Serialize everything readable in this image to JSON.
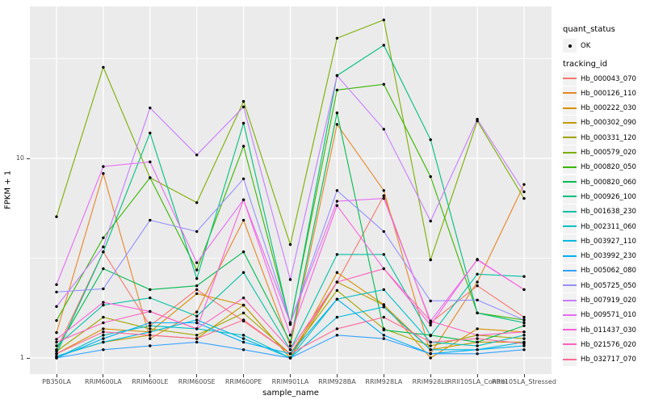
{
  "legend": {
    "quant_status_title": "quant_status",
    "quant_status_items": [
      {
        "label": "OK",
        "marker": "black-point"
      }
    ],
    "tracking_id_title": "tracking_id"
  },
  "chart_data": {
    "type": "line",
    "title": "",
    "xlabel": "sample_name",
    "ylabel": "FPKM + 1",
    "y_scale": "log10",
    "ylim": [
      1,
      60
    ],
    "yticks": [
      {
        "value": 1,
        "label": "1"
      },
      {
        "value": 10,
        "label": "10"
      }
    ],
    "y_minor_gridlines": [
      3.162,
      31.62
    ],
    "grid": true,
    "legend_position": "right",
    "panel_bg": "#EBEBEB",
    "grid_color": "#FFFFFF",
    "point_color": "#000000",
    "categories": [
      "PB350LA",
      "RRIM600LA",
      "RRIM600LE",
      "RRIM600SE",
      "RRIM600PE",
      "RRIM901LA",
      "RRIM928BA",
      "RRIM928LA",
      "RRIM928LE",
      "RRII105LA_Control",
      "RRII105LA_Stressed"
    ],
    "series": [
      {
        "name": "Hb_000043_070",
        "color": "#F8766D",
        "values": [
          1.1,
          3.4,
          1.45,
          2.2,
          1.53,
          1.05,
          2.4,
          6.5,
          1.5,
          2.3,
          1.6
        ]
      },
      {
        "name": "Hb_000126_110",
        "color": "#E88526",
        "values": [
          1.34,
          8.4,
          1.25,
          1.7,
          4.9,
          1.15,
          14.8,
          6.9,
          1.05,
          2.4,
          7.4
        ]
      },
      {
        "name": "Hb_000222_030",
        "color": "#D89000",
        "values": [
          1.05,
          1.4,
          1.35,
          2.1,
          1.84,
          1.0,
          2.68,
          1.85,
          1.0,
          1.4,
          1.35
        ]
      },
      {
        "name": "Hb_000302_090",
        "color": "#C09B00",
        "values": [
          1.02,
          1.2,
          1.3,
          1.25,
          1.84,
          1.0,
          2.4,
          1.84,
          1.1,
          1.2,
          1.2
        ]
      },
      {
        "name": "Hb_000331_120",
        "color": "#A3A500",
        "values": [
          1.08,
          1.6,
          1.4,
          1.3,
          1.68,
          1.05,
          2.18,
          1.4,
          1.15,
          1.3,
          1.25
        ]
      },
      {
        "name": "Hb_000579_020",
        "color": "#7CAE00",
        "values": [
          5.1,
          28.6,
          8.0,
          6.0,
          19.3,
          3.7,
          40.0,
          49.4,
          3.1,
          15.4,
          6.3
        ]
      },
      {
        "name": "Hb_000820_050",
        "color": "#39B600",
        "values": [
          1.54,
          4.0,
          8.0,
          2.76,
          11.5,
          1.5,
          22.0,
          23.5,
          8.1,
          1.68,
          1.55
        ]
      },
      {
        "name": "Hb_000820_060",
        "color": "#00BB4E",
        "values": [
          1.1,
          2.8,
          2.2,
          2.3,
          3.4,
          1.2,
          16.9,
          1.38,
          1.3,
          1.2,
          1.45
        ]
      },
      {
        "name": "Hb_000926_100",
        "color": "#00BF7D",
        "values": [
          1.05,
          3.4,
          13.4,
          2.5,
          15.0,
          1.47,
          26.0,
          36.9,
          12.4,
          1.68,
          1.5
        ]
      },
      {
        "name": "Hb_001638_230",
        "color": "#00C1A3",
        "values": [
          1.15,
          1.84,
          2.0,
          1.62,
          2.68,
          1.1,
          3.3,
          3.3,
          1.29,
          2.63,
          2.56
        ]
      },
      {
        "name": "Hb_002311_060",
        "color": "#00BFC4",
        "values": [
          1.0,
          1.3,
          1.45,
          1.4,
          1.3,
          1.0,
          1.97,
          2.2,
          1.2,
          1.15,
          1.3
        ]
      },
      {
        "name": "Hb_003927_110",
        "color": "#00BAE0",
        "values": [
          1.02,
          1.2,
          1.35,
          1.55,
          1.25,
          1.0,
          1.6,
          1.8,
          1.1,
          1.1,
          1.2
        ]
      },
      {
        "name": "Hb_003992_230",
        "color": "#00B0F6",
        "values": [
          1.0,
          1.25,
          1.5,
          1.5,
          1.2,
          1.05,
          1.97,
          1.3,
          1.05,
          1.1,
          1.15
        ]
      },
      {
        "name": "Hb_005062_080",
        "color": "#35A2FF",
        "values": [
          1.0,
          1.1,
          1.15,
          1.2,
          1.1,
          1.0,
          1.3,
          1.25,
          1.05,
          1.05,
          1.1
        ]
      },
      {
        "name": "Hb_005725_050",
        "color": "#9590FF",
        "values": [
          2.14,
          2.22,
          4.9,
          4.3,
          7.9,
          1.5,
          6.9,
          4.3,
          1.93,
          1.95,
          1.55
        ]
      },
      {
        "name": "Hb_007919_020",
        "color": "#C77CFF",
        "values": [
          1.81,
          3.6,
          17.9,
          10.4,
          18.1,
          2.47,
          26.0,
          14.0,
          4.85,
          15.7,
          6.8
        ]
      },
      {
        "name": "Hb_009571_010",
        "color": "#E76BF3",
        "values": [
          2.33,
          9.1,
          9.6,
          3.0,
          6.2,
          1.5,
          6.1,
          6.3,
          1.53,
          3.1,
          2.2
        ]
      },
      {
        "name": "Hb_011437_030",
        "color": "#FA62DB",
        "values": [
          1.24,
          1.9,
          1.71,
          1.4,
          6.2,
          1.3,
          5.8,
          2.8,
          1.46,
          3.12,
          2.2
        ]
      },
      {
        "name": "Hb_021576_020",
        "color": "#FF62BC",
        "values": [
          1.2,
          1.5,
          1.71,
          1.4,
          2.0,
          1.1,
          2.4,
          2.8,
          1.53,
          1.3,
          1.35
        ]
      },
      {
        "name": "Hb_032717_070",
        "color": "#FF6A98",
        "values": [
          1.05,
          1.35,
          1.3,
          1.25,
          1.55,
          1.05,
          1.4,
          1.6,
          1.2,
          1.25,
          1.18
        ]
      }
    ]
  }
}
